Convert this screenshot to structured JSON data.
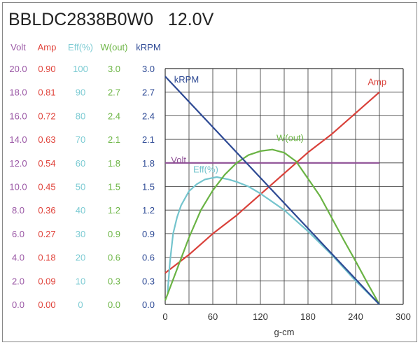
{
  "chart_data": {
    "type": "line",
    "title": "BBLDC2838B0W0",
    "voltage_label": "12.0V",
    "xlabel": "g-cm",
    "xlim": [
      0,
      300
    ],
    "x_ticks": [
      "0",
      "60",
      "120",
      "180",
      "240",
      "300"
    ],
    "grid": true,
    "axes": [
      {
        "name": "Volt",
        "color": "#9b59a6",
        "ticks": [
          "0.0",
          "2.0",
          "4.0",
          "6.0",
          "8.0",
          "10.0",
          "12.0",
          "14.0",
          "16.0",
          "18.0",
          "20.0"
        ],
        "range": [
          0,
          20
        ]
      },
      {
        "name": "Amp",
        "color": "#e0433b",
        "ticks": [
          "0.00",
          "0.09",
          "0.18",
          "0.27",
          "0.36",
          "0.45",
          "0.54",
          "0.63",
          "0.72",
          "0.81",
          "0.90"
        ],
        "range": [
          0,
          0.9
        ]
      },
      {
        "name": "Eff(%)",
        "color": "#7ccbd3",
        "ticks": [
          "0",
          "10",
          "20",
          "30",
          "40",
          "50",
          "60",
          "70",
          "80",
          "90",
          "100"
        ],
        "range": [
          0,
          100
        ]
      },
      {
        "name": "W(out)",
        "color": "#6cb545",
        "ticks": [
          "0.0",
          "0.3",
          "0.6",
          "0.9",
          "1.2",
          "1.5",
          "1.8",
          "2.1",
          "2.4",
          "2.7",
          "3.0"
        ],
        "range": [
          0,
          3
        ]
      },
      {
        "name": "kRPM",
        "color": "#2f4b96",
        "ticks": [
          "0.0",
          "0.3",
          "0.6",
          "0.9",
          "1.2",
          "1.5",
          "1.8",
          "2.1",
          "2.4",
          "2.7",
          "3.0"
        ],
        "range": [
          0,
          3
        ]
      }
    ],
    "series": [
      {
        "name": "Volt",
        "label": "Volt",
        "axis": 0,
        "color": "#8e4f95",
        "x": [
          0,
          270
        ],
        "y": [
          12.0,
          12.0
        ]
      },
      {
        "name": "Amp",
        "label": "Amp",
        "axis": 1,
        "color": "#d9413a",
        "x": [
          0,
          30,
          60,
          90,
          120,
          150,
          180,
          210,
          240,
          270
        ],
        "y": [
          0.12,
          0.19,
          0.27,
          0.34,
          0.42,
          0.5,
          0.58,
          0.65,
          0.73,
          0.81
        ]
      },
      {
        "name": "Eff(%)",
        "label": "Eff(%)",
        "axis": 2,
        "color": "#74c4cd",
        "x": [
          3,
          6,
          10,
          15,
          20,
          30,
          40,
          50,
          65,
          80,
          90,
          105,
          120,
          150,
          180,
          210,
          240,
          270
        ],
        "y": [
          5,
          18,
          30,
          37,
          42,
          48,
          51,
          53,
          54,
          53,
          52,
          50,
          47,
          40,
          31,
          21,
          10,
          0
        ]
      },
      {
        "name": "W(out)",
        "label": "W(out)",
        "axis": 3,
        "color": "#6ab344",
        "x": [
          0,
          15,
          30,
          45,
          60,
          75,
          90,
          105,
          120,
          135,
          150,
          165,
          180,
          195,
          210,
          225,
          240,
          255,
          270
        ],
        "y": [
          0.05,
          0.45,
          0.85,
          1.2,
          1.45,
          1.65,
          1.8,
          1.9,
          1.95,
          1.97,
          1.93,
          1.82,
          1.6,
          1.38,
          1.1,
          0.82,
          0.55,
          0.27,
          0
        ]
      },
      {
        "name": "kRPM",
        "label": "kRPM",
        "axis": 4,
        "color": "#2e4a94",
        "x": [
          0,
          270
        ],
        "y": [
          2.9,
          0
        ]
      }
    ]
  }
}
